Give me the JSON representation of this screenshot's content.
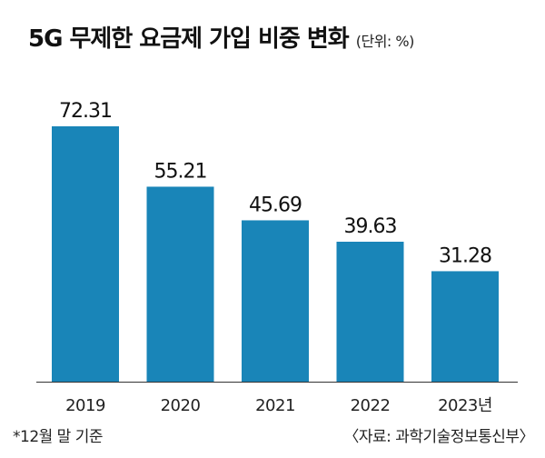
{
  "header": {
    "title": "5G 무제한 요금제 가입 비중 변화",
    "unit": "(단위: %)"
  },
  "footer": {
    "note": "*12월 말 기준",
    "source": "〈자료: 과학기술정보통신부〉"
  },
  "colors": {
    "bar": "#1985b8",
    "axis": "#333333"
  },
  "chart_data": {
    "type": "bar",
    "title": "5G 무제한 요금제 가입 비중 변화",
    "xlabel": "",
    "ylabel": "",
    "unit": "(단위: %)",
    "categories": [
      "2019",
      "2020",
      "2021",
      "2022",
      "2023년"
    ],
    "values": [
      72.31,
      55.21,
      45.69,
      39.63,
      31.28
    ],
    "value_labels": [
      "72.31",
      "55.21",
      "45.69",
      "39.63",
      "31.28"
    ],
    "ylim": [
      0,
      80
    ],
    "grid": false,
    "legend": "none"
  }
}
